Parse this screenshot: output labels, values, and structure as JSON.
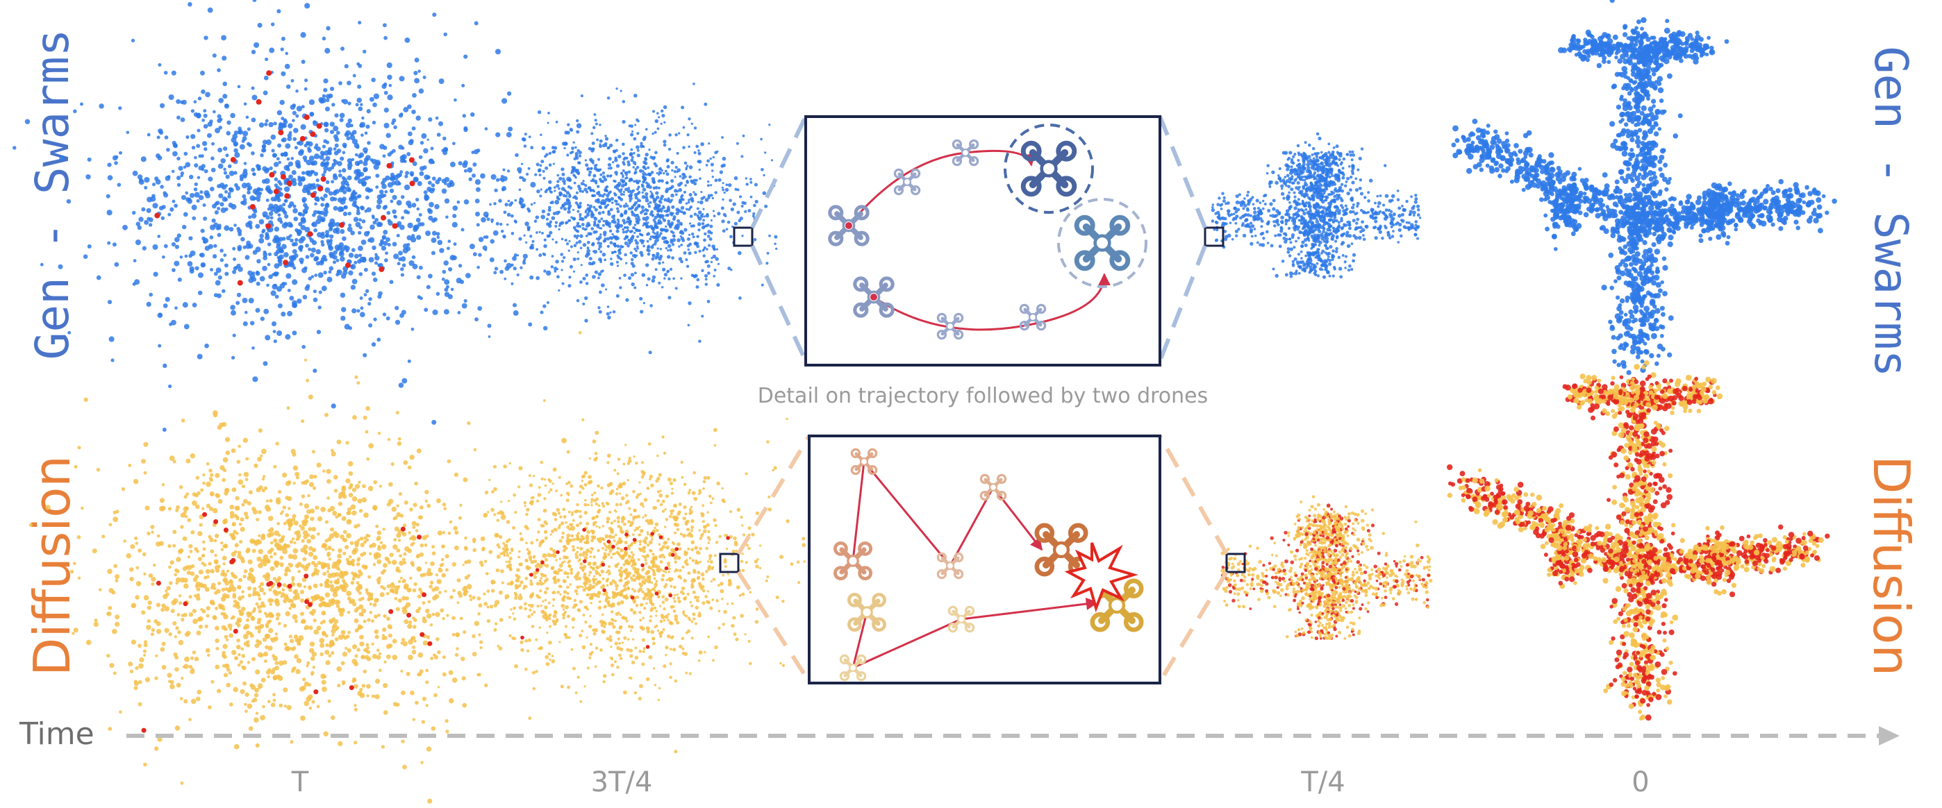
{
  "labels": {
    "gen_swarms": "Gen - Swarms",
    "diffusion": "Diffusion",
    "time": "Time",
    "detail_caption": "Detail on trajectory followed by two drones"
  },
  "time_steps": [
    "T",
    "3T/4",
    "T/4",
    "0"
  ],
  "colors": {
    "gen_blue": "#4a74c9",
    "diffusion_orange": "#e8803a",
    "blue_points": "#2f7ae8",
    "yellow_points": "#f5c14c",
    "red_points": "#e3261e",
    "axis_gray": "#bdbdbd",
    "label_gray": "#9a9a9a",
    "trajectory_red": "#d3314a",
    "frame_navy": "#1b2447"
  },
  "icons": [
    "drone-icon",
    "collision-burst-icon",
    "arrow-right-icon"
  ]
}
